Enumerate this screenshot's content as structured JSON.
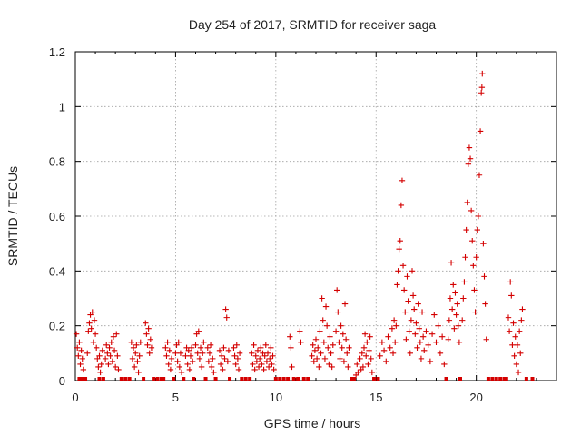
{
  "chart_data": {
    "type": "scatter",
    "title": "Day 254 of 2017, SRMTID for receiver saga",
    "xlabel": "GPS time / hours",
    "ylabel": "SRMTID / TECUs",
    "xlim": [
      0,
      24
    ],
    "ylim": [
      0,
      1.2
    ],
    "xticks": [
      0,
      5,
      10,
      15,
      20
    ],
    "xtick_labels": [
      "0",
      "5",
      "10",
      "15",
      "20"
    ],
    "yticks": [
      0,
      0.2,
      0.4,
      0.6,
      0.8,
      1.0,
      1.2
    ],
    "ytick_labels": [
      "0",
      "0.2",
      "0.4",
      "0.6",
      "0.8",
      "1",
      "1.2"
    ],
    "grid": true,
    "marker": "+",
    "color": "#d40000",
    "series": [
      {
        "name": "SRMTID",
        "points": [
          [
            0.05,
            0.17
          ],
          [
            0.1,
            0.12
          ],
          [
            0.15,
            0.09
          ],
          [
            0.2,
            0.14
          ],
          [
            0.25,
            0.06
          ],
          [
            0.3,
            0.11
          ],
          [
            0.35,
            0.08
          ],
          [
            0.4,
            0.04
          ],
          [
            0.6,
            0.1
          ],
          [
            0.65,
            0.18
          ],
          [
            0.7,
            0.21
          ],
          [
            0.75,
            0.24
          ],
          [
            0.8,
            0.19
          ],
          [
            0.85,
            0.25
          ],
          [
            0.9,
            0.14
          ],
          [
            0.95,
            0.22
          ],
          [
            1.0,
            0.17
          ],
          [
            1.05,
            0.12
          ],
          [
            1.1,
            0.08
          ],
          [
            1.15,
            0.05
          ],
          [
            1.2,
            0.09
          ],
          [
            1.25,
            0.03
          ],
          [
            1.3,
            0.06
          ],
          [
            1.35,
            0.11
          ],
          [
            1.5,
            0.08
          ],
          [
            1.55,
            0.13
          ],
          [
            1.6,
            0.1
          ],
          [
            1.65,
            0.06
          ],
          [
            1.7,
            0.12
          ],
          [
            1.75,
            0.09
          ],
          [
            1.8,
            0.14
          ],
          [
            1.85,
            0.07
          ],
          [
            1.9,
            0.16
          ],
          [
            1.95,
            0.11
          ],
          [
            2.0,
            0.05
          ],
          [
            2.05,
            0.17
          ],
          [
            2.1,
            0.09
          ],
          [
            2.15,
            0.04
          ],
          [
            2.8,
            0.14
          ],
          [
            2.85,
            0.08
          ],
          [
            2.9,
            0.12
          ],
          [
            2.95,
            0.05
          ],
          [
            3.0,
            0.1
          ],
          [
            3.05,
            0.13
          ],
          [
            3.1,
            0.07
          ],
          [
            3.15,
            0.03
          ],
          [
            3.2,
            0.09
          ],
          [
            3.25,
            0.14
          ],
          [
            3.5,
            0.21
          ],
          [
            3.55,
            0.17
          ],
          [
            3.6,
            0.13
          ],
          [
            3.65,
            0.19
          ],
          [
            3.7,
            0.1
          ],
          [
            3.75,
            0.15
          ],
          [
            3.8,
            0.12
          ],
          [
            4.5,
            0.12
          ],
          [
            4.55,
            0.09
          ],
          [
            4.6,
            0.14
          ],
          [
            4.65,
            0.06
          ],
          [
            4.7,
            0.11
          ],
          [
            4.75,
            0.04
          ],
          [
            4.8,
            0.08
          ],
          [
            5.0,
            0.1
          ],
          [
            5.05,
            0.13
          ],
          [
            5.1,
            0.07
          ],
          [
            5.15,
            0.14
          ],
          [
            5.2,
            0.05
          ],
          [
            5.25,
            0.1
          ],
          [
            5.3,
            0.03
          ],
          [
            5.5,
            0.09
          ],
          [
            5.55,
            0.12
          ],
          [
            5.6,
            0.06
          ],
          [
            5.65,
            0.11
          ],
          [
            5.7,
            0.04
          ],
          [
            5.75,
            0.09
          ],
          [
            5.8,
            0.12
          ],
          [
            5.85,
            0.07
          ],
          [
            6.0,
            0.13
          ],
          [
            6.05,
            0.17
          ],
          [
            6.1,
            0.1
          ],
          [
            6.15,
            0.18
          ],
          [
            6.2,
            0.08
          ],
          [
            6.25,
            0.12
          ],
          [
            6.3,
            0.05
          ],
          [
            6.35,
            0.1
          ],
          [
            6.4,
            0.14
          ],
          [
            6.6,
            0.12
          ],
          [
            6.65,
            0.07
          ],
          [
            6.7,
            0.1
          ],
          [
            6.75,
            0.13
          ],
          [
            6.8,
            0.05
          ],
          [
            6.85,
            0.08
          ],
          [
            6.9,
            0.03
          ],
          [
            7.2,
            0.11
          ],
          [
            7.25,
            0.06
          ],
          [
            7.3,
            0.09
          ],
          [
            7.35,
            0.04
          ],
          [
            7.4,
            0.12
          ],
          [
            7.45,
            0.08
          ],
          [
            7.5,
            0.26
          ],
          [
            7.55,
            0.23
          ],
          [
            7.6,
            0.07
          ],
          [
            7.65,
            0.11
          ],
          [
            7.9,
            0.12
          ],
          [
            7.95,
            0.09
          ],
          [
            8.0,
            0.06
          ],
          [
            8.05,
            0.13
          ],
          [
            8.1,
            0.08
          ],
          [
            8.15,
            0.04
          ],
          [
            8.2,
            0.1
          ],
          [
            8.8,
            0.1
          ],
          [
            8.85,
            0.06
          ],
          [
            8.9,
            0.13
          ],
          [
            8.95,
            0.04
          ],
          [
            9.0,
            0.09
          ],
          [
            9.05,
            0.07
          ],
          [
            9.1,
            0.11
          ],
          [
            9.15,
            0.05
          ],
          [
            9.2,
            0.08
          ],
          [
            9.25,
            0.12
          ],
          [
            9.3,
            0.06
          ],
          [
            9.35,
            0.1
          ],
          [
            9.4,
            0.04
          ],
          [
            9.45,
            0.09
          ],
          [
            9.5,
            0.13
          ],
          [
            9.55,
            0.07
          ],
          [
            9.6,
            0.1
          ],
          [
            9.65,
            0.05
          ],
          [
            9.7,
            0.08
          ],
          [
            9.75,
            0.12
          ],
          [
            9.8,
            0.06
          ],
          [
            9.85,
            0.09
          ],
          [
            9.9,
            0.04
          ],
          [
            10.7,
            0.16
          ],
          [
            10.75,
            0.12
          ],
          [
            10.8,
            0.05
          ],
          [
            11.2,
            0.18
          ],
          [
            11.25,
            0.14
          ],
          [
            11.8,
            0.09
          ],
          [
            11.85,
            0.13
          ],
          [
            11.9,
            0.07
          ],
          [
            11.95,
            0.11
          ],
          [
            12.0,
            0.15
          ],
          [
            12.05,
            0.08
          ],
          [
            12.1,
            0.12
          ],
          [
            12.15,
            0.05
          ],
          [
            12.2,
            0.18
          ],
          [
            12.25,
            0.1
          ],
          [
            12.3,
            0.3
          ],
          [
            12.35,
            0.22
          ],
          [
            12.4,
            0.14
          ],
          [
            12.45,
            0.08
          ],
          [
            12.5,
            0.27
          ],
          [
            12.55,
            0.2
          ],
          [
            12.6,
            0.12
          ],
          [
            12.65,
            0.06
          ],
          [
            12.7,
            0.16
          ],
          [
            12.75,
            0.1
          ],
          [
            12.8,
            0.05
          ],
          [
            12.85,
            0.13
          ],
          [
            13.0,
            0.18
          ],
          [
            13.05,
            0.33
          ],
          [
            13.1,
            0.25
          ],
          [
            13.15,
            0.14
          ],
          [
            13.2,
            0.08
          ],
          [
            13.25,
            0.2
          ],
          [
            13.3,
            0.12
          ],
          [
            13.35,
            0.17
          ],
          [
            13.4,
            0.07
          ],
          [
            13.45,
            0.28
          ],
          [
            13.5,
            0.15
          ],
          [
            13.55,
            0.1
          ],
          [
            13.6,
            0.05
          ],
          [
            13.65,
            0.12
          ],
          [
            14.0,
            0.02
          ],
          [
            14.05,
            0.06
          ],
          [
            14.1,
            0.03
          ],
          [
            14.2,
            0.08
          ],
          [
            14.25,
            0.04
          ],
          [
            14.3,
            0.1
          ],
          [
            14.35,
            0.05
          ],
          [
            14.4,
            0.12
          ],
          [
            14.45,
            0.17
          ],
          [
            14.5,
            0.09
          ],
          [
            14.55,
            0.14
          ],
          [
            14.6,
            0.06
          ],
          [
            14.65,
            0.11
          ],
          [
            14.7,
            0.16
          ],
          [
            14.75,
            0.08
          ],
          [
            14.8,
            0.03
          ],
          [
            15.2,
            0.09
          ],
          [
            15.3,
            0.14
          ],
          [
            15.4,
            0.11
          ],
          [
            15.5,
            0.07
          ],
          [
            15.6,
            0.16
          ],
          [
            15.7,
            0.12
          ],
          [
            15.8,
            0.19
          ],
          [
            15.85,
            0.1
          ],
          [
            15.9,
            0.22
          ],
          [
            15.95,
            0.14
          ],
          [
            16.0,
            0.2
          ],
          [
            16.05,
            0.35
          ],
          [
            16.1,
            0.4
          ],
          [
            16.15,
            0.48
          ],
          [
            16.2,
            0.51
          ],
          [
            16.25,
            0.64
          ],
          [
            16.3,
            0.73
          ],
          [
            16.35,
            0.42
          ],
          [
            16.4,
            0.33
          ],
          [
            16.45,
            0.25
          ],
          [
            16.5,
            0.15
          ],
          [
            16.55,
            0.38
          ],
          [
            16.6,
            0.29
          ],
          [
            16.65,
            0.18
          ],
          [
            16.7,
            0.1
          ],
          [
            16.75,
            0.22
          ],
          [
            16.8,
            0.4
          ],
          [
            16.85,
            0.31
          ],
          [
            16.9,
            0.26
          ],
          [
            16.95,
            0.17
          ],
          [
            17.0,
            0.21
          ],
          [
            17.05,
            0.12
          ],
          [
            17.1,
            0.28
          ],
          [
            17.15,
            0.19
          ],
          [
            17.2,
            0.14
          ],
          [
            17.25,
            0.08
          ],
          [
            17.3,
            0.25
          ],
          [
            17.35,
            0.16
          ],
          [
            17.4,
            0.11
          ],
          [
            17.5,
            0.18
          ],
          [
            17.6,
            0.13
          ],
          [
            17.7,
            0.07
          ],
          [
            17.8,
            0.17
          ],
          [
            17.9,
            0.24
          ],
          [
            18.0,
            0.14
          ],
          [
            18.1,
            0.2
          ],
          [
            18.2,
            0.1
          ],
          [
            18.3,
            0.16
          ],
          [
            18.4,
            0.06
          ],
          [
            18.6,
            0.15
          ],
          [
            18.65,
            0.22
          ],
          [
            18.7,
            0.3
          ],
          [
            18.75,
            0.43
          ],
          [
            18.8,
            0.26
          ],
          [
            18.85,
            0.35
          ],
          [
            18.9,
            0.19
          ],
          [
            18.95,
            0.32
          ],
          [
            19.0,
            0.24
          ],
          [
            19.05,
            0.28
          ],
          [
            19.1,
            0.2
          ],
          [
            19.15,
            0.14
          ],
          [
            19.3,
            0.22
          ],
          [
            19.35,
            0.3
          ],
          [
            19.4,
            0.36
          ],
          [
            19.45,
            0.45
          ],
          [
            19.5,
            0.55
          ],
          [
            19.55,
            0.65
          ],
          [
            19.6,
            0.79
          ],
          [
            19.65,
            0.85
          ],
          [
            19.7,
            0.81
          ],
          [
            19.75,
            0.62
          ],
          [
            19.8,
            0.51
          ],
          [
            19.85,
            0.42
          ],
          [
            19.9,
            0.33
          ],
          [
            19.95,
            0.25
          ],
          [
            20.0,
            0.45
          ],
          [
            20.05,
            0.55
          ],
          [
            20.1,
            0.6
          ],
          [
            20.15,
            0.75
          ],
          [
            20.2,
            0.91
          ],
          [
            20.25,
            1.05
          ],
          [
            20.28,
            1.07
          ],
          [
            20.3,
            1.12
          ],
          [
            20.35,
            0.5
          ],
          [
            20.4,
            0.38
          ],
          [
            20.45,
            0.28
          ],
          [
            20.5,
            0.15
          ],
          [
            21.6,
            0.23
          ],
          [
            21.65,
            0.18
          ],
          [
            21.7,
            0.36
          ],
          [
            21.75,
            0.31
          ],
          [
            21.8,
            0.13
          ],
          [
            21.85,
            0.21
          ],
          [
            21.9,
            0.09
          ],
          [
            21.95,
            0.16
          ],
          [
            22.0,
            0.06
          ],
          [
            22.05,
            0.13
          ],
          [
            22.1,
            0.03
          ],
          [
            22.15,
            0.18
          ],
          [
            22.2,
            0.1
          ],
          [
            22.25,
            0.22
          ],
          [
            22.3,
            0.26
          ]
        ]
      }
    ],
    "zero_markers": [
      0.2,
      0.35,
      0.5,
      1.2,
      1.4,
      2.3,
      2.5,
      2.7,
      3.4,
      3.9,
      4.1,
      4.3,
      4.4,
      4.9,
      5.4,
      5.9,
      6.5,
      7.0,
      7.7,
      8.3,
      8.5,
      8.7,
      10.0,
      10.2,
      10.4,
      10.6,
      10.9,
      11.1,
      11.4,
      11.6,
      13.8,
      13.9,
      14.9,
      15.1,
      18.5,
      19.2,
      20.6,
      20.8,
      21.0,
      21.2,
      21.4,
      21.5,
      22.5,
      22.8
    ]
  }
}
